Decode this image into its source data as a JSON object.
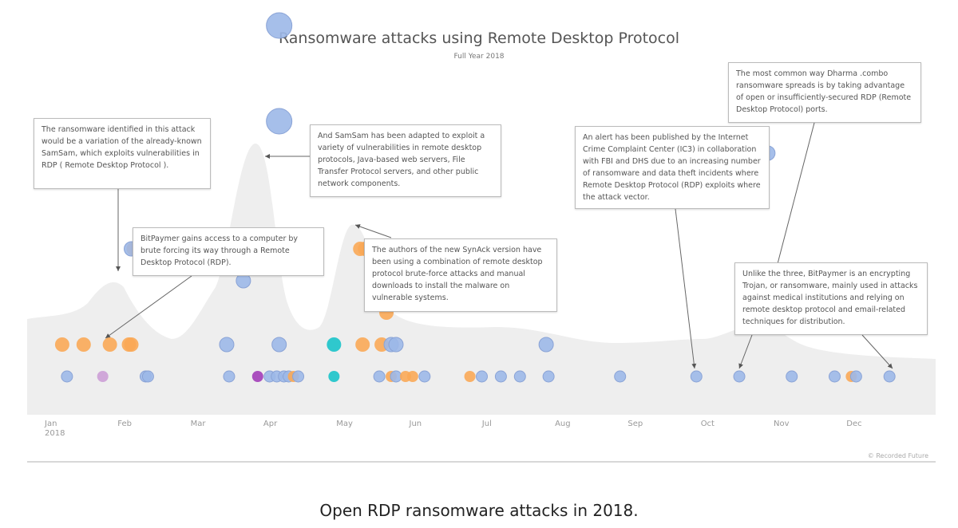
{
  "chart_data": {
    "type": "scatter",
    "title": "Ransomware attacks using Remote Desktop Protocol",
    "subtitle": "Full Year 2018",
    "xlabel": "",
    "ylabel": "",
    "x_domain": [
      "2018-01-01",
      "2018-12-31"
    ],
    "tick_labels": [
      "Jan\n2018",
      "Feb",
      "Mar",
      "Apr",
      "May",
      "Jun",
      "Jul",
      "Aug",
      "Sep",
      "Oct",
      "Nov",
      "Dec"
    ],
    "legend": null,
    "grid": false,
    "credit": "© Recorded Future",
    "colors": {
      "blue": "#9cb8e8",
      "orange": "#f9a857",
      "teal": "#19c3c9",
      "purple": "#a23db8",
      "light_purple": "#cc9fd6",
      "density": "#eeeeee"
    },
    "points": [
      {
        "day": 8,
        "row": 1,
        "color": "blue",
        "size": "s"
      },
      {
        "day": 23,
        "row": 1,
        "color": "light_purple",
        "size": "s"
      },
      {
        "day": 41,
        "row": 1,
        "color": "blue",
        "size": "s"
      },
      {
        "day": 42,
        "row": 1,
        "color": "blue",
        "size": "s"
      },
      {
        "day": 76,
        "row": 1,
        "color": "blue",
        "size": "s"
      },
      {
        "day": 88,
        "row": 1,
        "color": "purple",
        "size": "s"
      },
      {
        "day": 93,
        "row": 1,
        "color": "blue",
        "size": "s"
      },
      {
        "day": 96,
        "row": 1,
        "color": "blue",
        "size": "s"
      },
      {
        "day": 99,
        "row": 1,
        "color": "blue",
        "size": "s"
      },
      {
        "day": 101,
        "row": 1,
        "color": "blue",
        "size": "s"
      },
      {
        "day": 103,
        "row": 1,
        "color": "orange",
        "size": "s"
      },
      {
        "day": 105,
        "row": 1,
        "color": "blue",
        "size": "s"
      },
      {
        "day": 120,
        "row": 1,
        "color": "teal",
        "size": "s"
      },
      {
        "day": 139,
        "row": 1,
        "color": "blue",
        "size": "s"
      },
      {
        "day": 144,
        "row": 1,
        "color": "orange",
        "size": "s"
      },
      {
        "day": 146,
        "row": 1,
        "color": "blue",
        "size": "s"
      },
      {
        "day": 150,
        "row": 1,
        "color": "orange",
        "size": "s"
      },
      {
        "day": 153,
        "row": 1,
        "color": "orange",
        "size": "s"
      },
      {
        "day": 158,
        "row": 1,
        "color": "blue",
        "size": "s"
      },
      {
        "day": 177,
        "row": 1,
        "color": "orange",
        "size": "s"
      },
      {
        "day": 182,
        "row": 1,
        "color": "blue",
        "size": "s"
      },
      {
        "day": 190,
        "row": 1,
        "color": "blue",
        "size": "s"
      },
      {
        "day": 198,
        "row": 1,
        "color": "blue",
        "size": "s"
      },
      {
        "day": 210,
        "row": 1,
        "color": "blue",
        "size": "s"
      },
      {
        "day": 240,
        "row": 1,
        "color": "blue",
        "size": "s"
      },
      {
        "day": 272,
        "row": 1,
        "color": "blue",
        "size": "s"
      },
      {
        "day": 290,
        "row": 1,
        "color": "blue",
        "size": "s"
      },
      {
        "day": 312,
        "row": 1,
        "color": "blue",
        "size": "s"
      },
      {
        "day": 330,
        "row": 1,
        "color": "blue",
        "size": "s"
      },
      {
        "day": 337,
        "row": 1,
        "color": "orange",
        "size": "s"
      },
      {
        "day": 339,
        "row": 1,
        "color": "blue",
        "size": "s"
      },
      {
        "day": 353,
        "row": 1,
        "color": "blue",
        "size": "s"
      },
      {
        "day": 6,
        "row": 2,
        "color": "orange",
        "size": "m"
      },
      {
        "day": 15,
        "row": 2,
        "color": "orange",
        "size": "m"
      },
      {
        "day": 26,
        "row": 2,
        "color": "orange",
        "size": "m"
      },
      {
        "day": 34,
        "row": 2,
        "color": "orange",
        "size": "m"
      },
      {
        "day": 35,
        "row": 2,
        "color": "orange",
        "size": "m"
      },
      {
        "day": 75,
        "row": 2,
        "color": "blue",
        "size": "m"
      },
      {
        "day": 97,
        "row": 2,
        "color": "blue",
        "size": "m"
      },
      {
        "day": 120,
        "row": 2,
        "color": "teal",
        "size": "m"
      },
      {
        "day": 132,
        "row": 2,
        "color": "orange",
        "size": "m"
      },
      {
        "day": 140,
        "row": 2,
        "color": "orange",
        "size": "m"
      },
      {
        "day": 144,
        "row": 2,
        "color": "blue",
        "size": "m"
      },
      {
        "day": 146,
        "row": 2,
        "color": "blue",
        "size": "m"
      },
      {
        "day": 209,
        "row": 2,
        "color": "blue",
        "size": "m"
      },
      {
        "day": 142,
        "row": 3,
        "color": "orange",
        "size": "m"
      },
      {
        "day": 82,
        "row": 4,
        "color": "blue",
        "size": "m"
      },
      {
        "day": 36,
        "row": 5,
        "color": "orange",
        "size": "m"
      },
      {
        "day": 35,
        "row": 5,
        "color": "blue",
        "size": "m"
      },
      {
        "day": 98,
        "row": 5,
        "color": "blue",
        "size": "m"
      },
      {
        "day": 131,
        "row": 5,
        "color": "orange",
        "size": "m"
      },
      {
        "day": 133,
        "row": 5,
        "color": "orange",
        "size": "m"
      },
      {
        "day": 132,
        "row": 7,
        "color": "orange",
        "size": "m"
      },
      {
        "day": 295,
        "row": 7,
        "color": "orange",
        "size": "m"
      },
      {
        "day": 302,
        "row": 8,
        "color": "blue",
        "size": "m"
      },
      {
        "day": 97,
        "row": 9,
        "color": "blue",
        "size": "l"
      },
      {
        "day": 97,
        "row": 12,
        "color": "blue",
        "size": "l"
      }
    ],
    "annotations": [
      {
        "id": "samsam-variation",
        "text": "The ransomware identified in this attack would be a variation of the already-known SamSam, which exploits vulnerabilities in RDP ( Remote Desktop Protocol ).",
        "target_day": 36
      },
      {
        "id": "samsam-adapted",
        "text": "And SamSam has been adapted to exploit a variety of vulnerabilities in remote desktop protocols, Java-based web servers, File Transfer Protocol servers, and other public network components.",
        "target_day": 97
      },
      {
        "id": "bitpaymer-brute",
        "text": "BitPaymer gains access to a computer by brute forcing its way through a Remote Desktop Protocol (RDP).",
        "target_day": 26
      },
      {
        "id": "synack",
        "text": "The authors of the new SynAck version have been using a combination of remote desktop protocol brute-force attacks and manual downloads to install the malware on vulnerable systems.",
        "target_day": 132
      },
      {
        "id": "ic3-alert",
        "text": "An alert has been published by the Internet Crime Complaint Center (IC3) in collaboration with FBI and DHS due to an increasing number of ransomware and data theft incidents where Remote Desktop Protocol (RDP) exploits where the attack vector.",
        "target_day": 272
      },
      {
        "id": "dharma",
        "text": "The most common way Dharma .combo ransomware spreads is by taking advantage of open or insufficiently-secured RDP (Remote Desktop Protocol) ports.",
        "target_day": 302
      },
      {
        "id": "bitpaymer-trojan",
        "text": "Unlike the three, BitPaymer is an encrypting Trojan, or ransomware, mainly used in attacks against medical institutions and relying on remote desktop protocol and email-related techniques for distribution.",
        "target_day": 353
      }
    ]
  },
  "caption": "Open RDP ransomware attacks in 2018."
}
